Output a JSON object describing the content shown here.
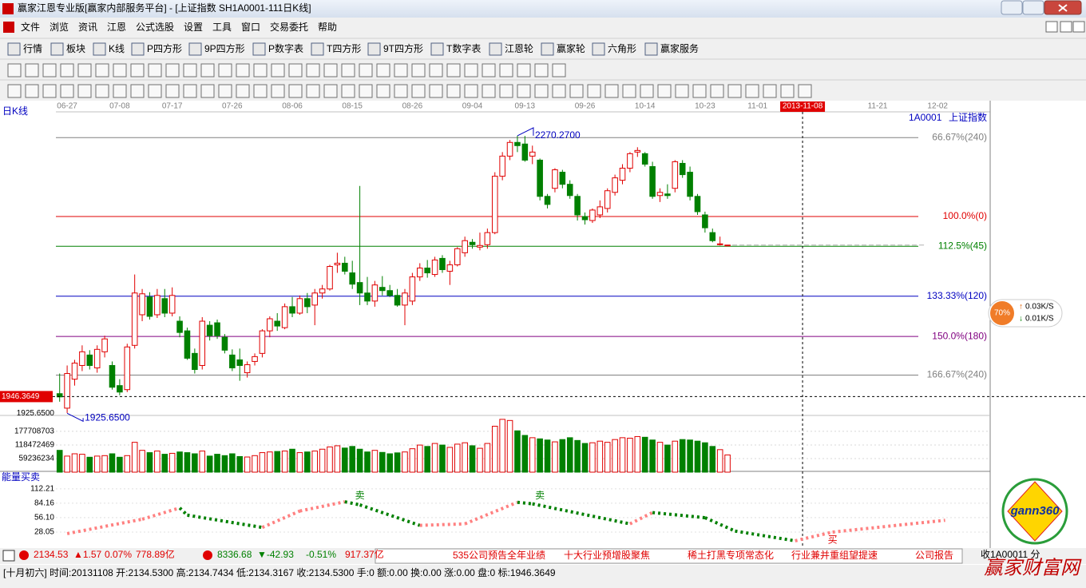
{
  "window": {
    "title": "赢家江恩专业版[赢家内部服务平台] - [上证指数  SH1A0001-111日K线]"
  },
  "menu": [
    "文件",
    "浏览",
    "资讯",
    "江恩",
    "公式选股",
    "设置",
    "工具",
    "窗口",
    "交易委托",
    "帮助"
  ],
  "toolbar": [
    "行情",
    "板块",
    "K线",
    "P四方形",
    "9P四方形",
    "P数字表",
    "T四方形",
    "9T四方形",
    "T数字表",
    "江恩轮",
    "赢家轮",
    "六角形",
    "赢家服务"
  ],
  "chart_data": [
    {
      "type": "candlestick",
      "title": "日K线",
      "symbol": "1A0001",
      "name": "上证指数",
      "up_color": "#e00000",
      "down_color": "#008000",
      "xlim": [
        -0.5,
        124
      ],
      "ylim": [
        1918,
        2295
      ],
      "xticks": [
        {
          "value": 1,
          "label": "06-27"
        },
        {
          "value": 8,
          "label": "07-08"
        },
        {
          "value": 15,
          "label": "07-17"
        },
        {
          "value": 23,
          "label": "07-26"
        },
        {
          "value": 31,
          "label": "08-06"
        },
        {
          "value": 39,
          "label": "08-15"
        },
        {
          "value": 47,
          "label": "08-26"
        },
        {
          "value": 55,
          "label": "09-04"
        },
        {
          "value": 62,
          "label": "09-13"
        },
        {
          "value": 70,
          "label": "09-26"
        },
        {
          "value": 78,
          "label": "10-14"
        },
        {
          "value": 86,
          "label": "10-23"
        },
        {
          "value": 93,
          "label": "11-01"
        },
        {
          "value": 109,
          "label": "11-21"
        },
        {
          "value": 117,
          "label": "12-02"
        }
      ],
      "yticks": [
        {
          "value": 1925.65,
          "label": "1925.6500"
        }
      ],
      "cursor": {
        "x": 99,
        "date": "2013-11-08",
        "value": 1946.3649
      },
      "annotations": [
        {
          "text": "2270.2700",
          "x": 61,
          "value": 2270.27
        },
        {
          "text": "1925.6500",
          "x": 1,
          "value": 1925.65
        }
      ],
      "gann_lines": [
        {
          "label": "66.67%(240)",
          "value": 2268,
          "color": "#808080"
        },
        {
          "label": "100.0%(0)",
          "value": 2170,
          "color": "#e00000"
        },
        {
          "label": "112.5%(45)",
          "value": 2133,
          "color": "#008000"
        },
        {
          "label": "133.33%(120)",
          "value": 2071,
          "color": "#0000c0"
        },
        {
          "label": "150.0%(180)",
          "value": 2021,
          "color": "#800080"
        },
        {
          "label": "166.67%(240)",
          "value": 1973,
          "color": "#808080"
        }
      ],
      "values": [
        [
          1950,
          1975,
          1940,
          1946
        ],
        [
          1932,
          1985,
          1926,
          1975
        ],
        [
          1968,
          1992,
          1960,
          1988
        ],
        [
          1985,
          2010,
          1978,
          2002
        ],
        [
          1998,
          2004,
          1980,
          1985
        ],
        [
          1982,
          2010,
          1976,
          2005
        ],
        [
          2002,
          2022,
          1995,
          2018
        ],
        [
          1985,
          1990,
          1955,
          1958
        ],
        [
          1960,
          1968,
          1948,
          1952
        ],
        [
          1955,
          2012,
          1952,
          2008
        ],
        [
          2010,
          2098,
          2006,
          2075
        ],
        [
          2048,
          2080,
          2040,
          2074
        ],
        [
          2070,
          2076,
          2042,
          2046
        ],
        [
          2048,
          2080,
          2044,
          2072
        ],
        [
          2068,
          2080,
          2045,
          2050
        ],
        [
          2050,
          2082,
          2046,
          2072
        ],
        [
          2040,
          2046,
          2020,
          2026
        ],
        [
          2028,
          2032,
          1992,
          1994
        ],
        [
          2000,
          2006,
          1975,
          1980
        ],
        [
          1985,
          2045,
          1980,
          2040
        ],
        [
          2035,
          2040,
          2016,
          2022
        ],
        [
          2038,
          2042,
          2018,
          2022
        ],
        [
          2020,
          2024,
          2000,
          2004
        ],
        [
          1998,
          2005,
          1978,
          1982
        ],
        [
          1992,
          2006,
          1966,
          1985
        ],
        [
          1976,
          1990,
          1970,
          1986
        ],
        [
          1990,
          2000,
          1985,
          1996
        ],
        [
          2000,
          2030,
          1995,
          2028
        ],
        [
          2028,
          2046,
          2020,
          2043
        ],
        [
          2040,
          2050,
          2028,
          2034
        ],
        [
          2032,
          2062,
          2030,
          2058
        ],
        [
          2058,
          2070,
          2045,
          2050
        ],
        [
          2050,
          2072,
          2048,
          2068
        ],
        [
          2068,
          2075,
          2050,
          2058
        ],
        [
          2060,
          2080,
          2035,
          2075
        ],
        [
          2075,
          2085,
          2068,
          2080
        ],
        [
          2080,
          2110,
          2078,
          2108
        ],
        [
          2110,
          2125,
          2100,
          2112
        ],
        [
          2112,
          2120,
          2098,
          2102
        ],
        [
          2100,
          2115,
          2080,
          2086
        ],
        [
          2088,
          2208,
          2060,
          2075
        ],
        [
          2075,
          2095,
          2060,
          2065
        ],
        [
          2065,
          2090,
          2058,
          2085
        ],
        [
          2082,
          2096,
          2072,
          2078
        ],
        [
          2078,
          2085,
          2070,
          2072
        ],
        [
          2072,
          2080,
          2058,
          2060
        ],
        [
          2060,
          2080,
          2035,
          2075
        ],
        [
          2065,
          2100,
          2060,
          2095
        ],
        [
          2095,
          2112,
          2090,
          2106
        ],
        [
          2106,
          2116,
          2094,
          2100
        ],
        [
          2098,
          2120,
          2095,
          2116
        ],
        [
          2118,
          2122,
          2100,
          2104
        ],
        [
          2102,
          2115,
          2085,
          2110
        ],
        [
          2110,
          2132,
          2108,
          2130
        ],
        [
          2125,
          2145,
          2120,
          2140
        ],
        [
          2138,
          2142,
          2130,
          2135
        ],
        [
          2132,
          2150,
          2128,
          2134
        ],
        [
          2135,
          2155,
          2130,
          2150
        ],
        [
          2150,
          2225,
          2148,
          2220
        ],
        [
          2220,
          2250,
          2215,
          2245
        ],
        [
          2245,
          2265,
          2240,
          2262
        ],
        [
          2262,
          2270.27,
          2250,
          2258
        ],
        [
          2260,
          2270,
          2238,
          2240
        ],
        [
          2245,
          2258,
          2235,
          2250
        ],
        [
          2240,
          2242,
          2190,
          2195
        ],
        [
          2195,
          2198,
          2180,
          2185
        ],
        [
          2205,
          2230,
          2200,
          2228
        ],
        [
          2225,
          2228,
          2205,
          2210
        ],
        [
          2210,
          2215,
          2192,
          2196
        ],
        [
          2195,
          2198,
          2165,
          2172
        ],
        [
          2170,
          2175,
          2160,
          2166
        ],
        [
          2165,
          2180,
          2162,
          2178
        ],
        [
          2172,
          2190,
          2168,
          2182
        ],
        [
          2180,
          2205,
          2175,
          2202
        ],
        [
          2200,
          2222,
          2196,
          2218
        ],
        [
          2215,
          2235,
          2210,
          2230
        ],
        [
          2230,
          2250,
          2225,
          2248
        ],
        [
          2250,
          2256,
          2244,
          2252
        ],
        [
          2248,
          2250,
          2232,
          2235
        ],
        [
          2232,
          2238,
          2192,
          2195
        ],
        [
          2196,
          2205,
          2188,
          2200
        ],
        [
          2198,
          2210,
          2192,
          2196
        ],
        [
          2205,
          2240,
          2200,
          2238
        ],
        [
          2236,
          2240,
          2218,
          2222
        ],
        [
          2225,
          2232,
          2190,
          2195
        ],
        [
          2195,
          2198,
          2172,
          2176
        ],
        [
          2172,
          2176,
          2150,
          2156
        ],
        [
          2150,
          2155,
          2138,
          2140
        ],
        [
          2136,
          2145,
          2134,
          2136
        ],
        [
          2134.53,
          2134.7434,
          2134.3167,
          2134.53
        ]
      ]
    },
    {
      "type": "volume",
      "xlim": [
        -0.5,
        124
      ],
      "ylim": [
        0,
        247000000
      ],
      "yticks": [
        59236234,
        118472469,
        177708703
      ],
      "values": [
        95000000,
        70000000,
        80000000,
        78000000,
        65000000,
        70000000,
        72000000,
        80000000,
        65000000,
        72000000,
        130000000,
        95000000,
        85000000,
        92000000,
        78000000,
        82000000,
        88000000,
        85000000,
        80000000,
        92000000,
        70000000,
        78000000,
        72000000,
        80000000,
        68000000,
        66000000,
        72000000,
        85000000,
        88000000,
        90000000,
        92000000,
        100000000,
        85000000,
        88000000,
        92000000,
        100000000,
        110000000,
        115000000,
        105000000,
        112000000,
        100000000,
        88000000,
        95000000,
        86000000,
        80000000,
        84000000,
        88000000,
        102000000,
        118000000,
        112000000,
        125000000,
        118000000,
        108000000,
        122000000,
        128000000,
        115000000,
        104000000,
        125000000,
        200000000,
        230000000,
        225000000,
        180000000,
        160000000,
        150000000,
        145000000,
        140000000,
        132000000,
        142000000,
        150000000,
        138000000,
        125000000,
        128000000,
        135000000,
        130000000,
        142000000,
        150000000,
        148000000,
        155000000,
        152000000,
        140000000,
        130000000,
        118000000,
        135000000,
        142000000,
        140000000,
        135000000,
        128000000,
        112000000,
        98000000,
        75000000
      ]
    },
    {
      "type": "line",
      "title": "能量买卖",
      "xlim": [
        -0.5,
        124
      ],
      "ylim": [
        0,
        126
      ],
      "up_color": "#ff8080",
      "down_color": "#008000",
      "yticks": [
        {
          "value": 112.21,
          "label": "112.21"
        },
        {
          "value": 84.16,
          "label": "84.16"
        },
        {
          "value": 56.1,
          "label": "56.10"
        },
        {
          "value": 28.05,
          "label": "28.05"
        }
      ],
      "x": [
        1,
        11,
        16,
        17,
        27,
        32,
        38,
        40,
        48,
        54,
        61,
        63,
        76,
        79,
        86,
        90,
        98,
        103,
        118
      ],
      "values": [
        25,
        53,
        75,
        61,
        37,
        69,
        87,
        81,
        41,
        44,
        86,
        83,
        44,
        66,
        56,
        30,
        11,
        28,
        51
      ],
      "annotations": [
        {
          "text": "卖",
          "x": 40,
          "value": 98
        },
        {
          "text": "卖",
          "x": 64,
          "value": 98
        },
        {
          "text": "买",
          "x": 103,
          "value": 12
        }
      ]
    }
  ],
  "gauge": {
    "percent": "70%",
    "up": "0.03K/S",
    "down": "0.01K/S"
  },
  "logo": "gann360",
  "ticker": {
    "sh": [
      "2134.53",
      "▲1.57",
      "0.07%",
      "778.89亿"
    ],
    "sz": [
      "8336.68",
      "▼-42.93",
      "-0.51%",
      "917.37亿"
    ],
    "news": [
      "535公司预告全年业绩",
      "十大行业预增股聚焦",
      "稀土打黑专项常态化",
      "行业兼并重组望提速",
      "公司报告"
    ],
    "tail": "收1A00011 分"
  },
  "status": {
    "text": "[十月初六] 时间:20131108 开:2134.5300 高:2134.7434 低:2134.3167 收:2134.5300 手:0 额:0.00 换:0.00 涨:0.00 盘:0 标:1946.3649",
    "brand": "赢家财富网"
  }
}
